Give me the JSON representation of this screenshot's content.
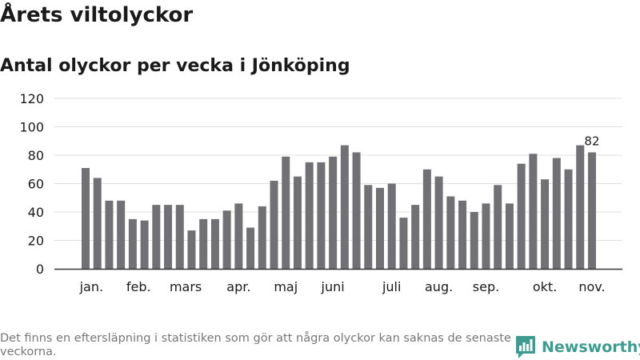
{
  "title": "Årets viltolyckor",
  "subtitle": "Antal olyckor per vecka i Jönköping",
  "footnote": "Det finns en eftersläpning i statistiken som gör att några olyckor kan saknas de senaste veckorna.",
  "brand": {
    "name": "Newsworthy",
    "logo_icon": "bar-chart-speech-bubble-icon",
    "color": "#3d9b8f"
  },
  "chart_data": {
    "type": "bar",
    "xlabel": "",
    "ylabel": "",
    "ylim": [
      0,
      120
    ],
    "yticks": [
      0,
      20,
      40,
      60,
      80,
      100,
      120
    ],
    "grid": true,
    "bar_color": "#717074",
    "highlight_color": "#13a89e",
    "highlight_index": 44,
    "values": [
      71,
      64,
      48,
      48,
      35,
      34,
      45,
      45,
      45,
      27,
      35,
      35,
      41,
      46,
      29,
      44,
      62,
      79,
      65,
      75,
      75,
      79,
      87,
      82,
      59,
      57,
      60,
      36,
      45,
      70,
      65,
      51,
      48,
      40,
      46,
      59,
      46,
      74,
      81,
      63,
      78,
      70,
      87,
      82
    ],
    "data_labels": [
      {
        "index": 43,
        "text": "82"
      }
    ],
    "month_labels": [
      {
        "label": "jan.",
        "index": 0.5
      },
      {
        "label": "feb.",
        "index": 4.5
      },
      {
        "label": "mars",
        "index": 8.5
      },
      {
        "label": "apr.",
        "index": 13
      },
      {
        "label": "maj",
        "index": 17
      },
      {
        "label": "juni",
        "index": 21
      },
      {
        "label": "juli",
        "index": 26
      },
      {
        "label": "aug.",
        "index": 30
      },
      {
        "label": "sep.",
        "index": 34
      },
      {
        "label": "okt.",
        "index": 39
      },
      {
        "label": "nov.",
        "index": 43
      }
    ]
  }
}
